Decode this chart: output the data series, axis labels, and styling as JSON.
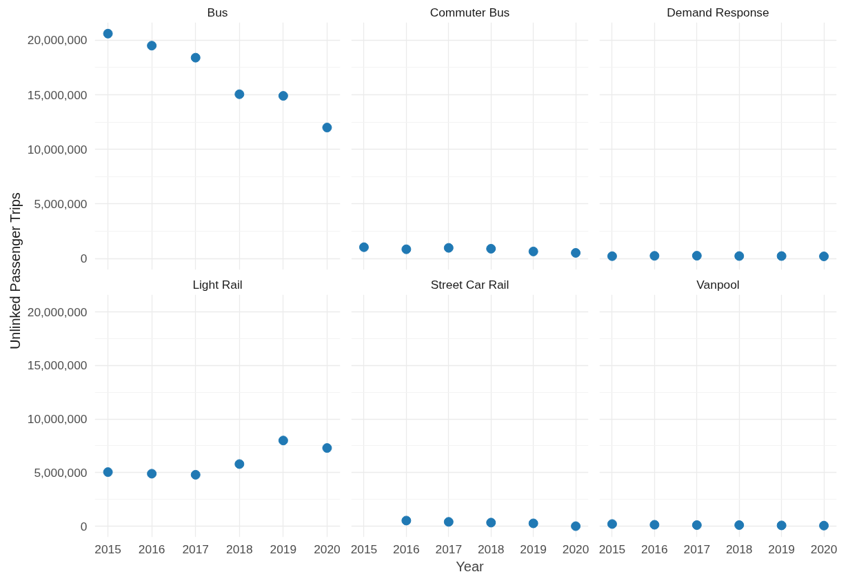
{
  "chart_data": [
    {
      "type": "scatter",
      "title": "Bus",
      "ylabel": "Unlinked Passenger Trips",
      "x": [
        2015,
        2016,
        2017,
        2018,
        2019,
        2020
      ],
      "series": [
        {
          "color": "#2079b4",
          "values": [
            20600000,
            19500000,
            18400000,
            15050000,
            14900000,
            12000000
          ]
        }
      ],
      "xlim": [
        2014.7,
        2020.3
      ],
      "ylim": [
        -1030000,
        21630000
      ],
      "xticks": [
        2015,
        2016,
        2017,
        2018,
        2019,
        2020
      ],
      "yticks": [
        {
          "value": 0,
          "label": "0"
        },
        {
          "value": 5000000,
          "label": "5,000,000"
        },
        {
          "value": 10000000,
          "label": "10,000,000"
        },
        {
          "value": 15000000,
          "label": "15,000,000"
        },
        {
          "value": 20000000,
          "label": "20,000,000"
        }
      ],
      "grid": true,
      "marker": "circle",
      "tick_labels": "y"
    },
    {
      "type": "scatter",
      "title": "Commuter Bus",
      "x": [
        2015,
        2016,
        2017,
        2018,
        2019,
        2020
      ],
      "series": [
        {
          "color": "#2079b4",
          "values": [
            1040000,
            850000,
            980000,
            900000,
            650000,
            520000
          ]
        }
      ],
      "xlim": [
        2014.7,
        2020.3
      ],
      "ylim": [
        -1030000,
        21630000
      ],
      "xticks": [
        2015,
        2016,
        2017,
        2018,
        2019,
        2020
      ],
      "yticks": [
        0,
        5000000,
        10000000,
        15000000,
        20000000
      ],
      "grid": true,
      "marker": "circle",
      "tick_labels": false
    },
    {
      "type": "scatter",
      "title": "Demand Response",
      "x": [
        2015,
        2016,
        2017,
        2018,
        2019,
        2020
      ],
      "series": [
        {
          "color": "#2079b4",
          "values": [
            220000,
            250000,
            260000,
            230000,
            230000,
            200000
          ]
        }
      ],
      "xlim": [
        2014.7,
        2020.3
      ],
      "ylim": [
        -1030000,
        21630000
      ],
      "xticks": [
        2015,
        2016,
        2017,
        2018,
        2019,
        2020
      ],
      "yticks": [
        0,
        5000000,
        10000000,
        15000000,
        20000000
      ],
      "grid": true,
      "marker": "circle",
      "tick_labels": false
    },
    {
      "type": "scatter",
      "title": "Light Rail",
      "x": [
        2015,
        2016,
        2017,
        2018,
        2019,
        2020
      ],
      "series": [
        {
          "color": "#2079b4",
          "values": [
            5050000,
            4900000,
            4800000,
            5800000,
            8000000,
            7300000
          ]
        }
      ],
      "xlim": [
        2014.7,
        2020.3
      ],
      "ylim": [
        -1030000,
        21630000
      ],
      "xticks": [
        2015,
        2016,
        2017,
        2018,
        2019,
        2020
      ],
      "yticks": [
        {
          "value": 0,
          "label": "0"
        },
        {
          "value": 5000000,
          "label": "5,000,000"
        },
        {
          "value": 10000000,
          "label": "10,000,000"
        },
        {
          "value": 15000000,
          "label": "15,000,000"
        },
        {
          "value": 20000000,
          "label": "20,000,000"
        }
      ],
      "grid": true,
      "marker": "circle"
    },
    {
      "type": "scatter",
      "title": "Street Car Rail",
      "xlabel": "Year",
      "series": [
        {
          "color": "#2079b4",
          "x": [
            2016,
            2017,
            2018,
            2019,
            2020
          ],
          "values": [
            520000,
            400000,
            330000,
            260000,
            0
          ]
        }
      ],
      "xlim": [
        2014.7,
        2020.3
      ],
      "ylim": [
        -1030000,
        21630000
      ],
      "xticks": [
        2015,
        2016,
        2017,
        2018,
        2019,
        2020
      ],
      "yticks": [
        0,
        5000000,
        10000000,
        15000000,
        20000000
      ],
      "grid": true,
      "marker": "circle",
      "tick_labels": "x"
    },
    {
      "type": "scatter",
      "title": "Vanpool",
      "x": [
        2015,
        2016,
        2017,
        2018,
        2019,
        2020
      ],
      "series": [
        {
          "color": "#2079b4",
          "values": [
            200000,
            130000,
            100000,
            100000,
            70000,
            50000
          ]
        }
      ],
      "xlim": [
        2014.7,
        2020.3
      ],
      "ylim": [
        -1030000,
        21630000
      ],
      "xticks": [
        2015,
        2016,
        2017,
        2018,
        2019,
        2020
      ],
      "yticks": [
        0,
        5000000,
        10000000,
        15000000,
        20000000
      ],
      "grid": true,
      "marker": "circle",
      "tick_labels": "x"
    }
  ]
}
